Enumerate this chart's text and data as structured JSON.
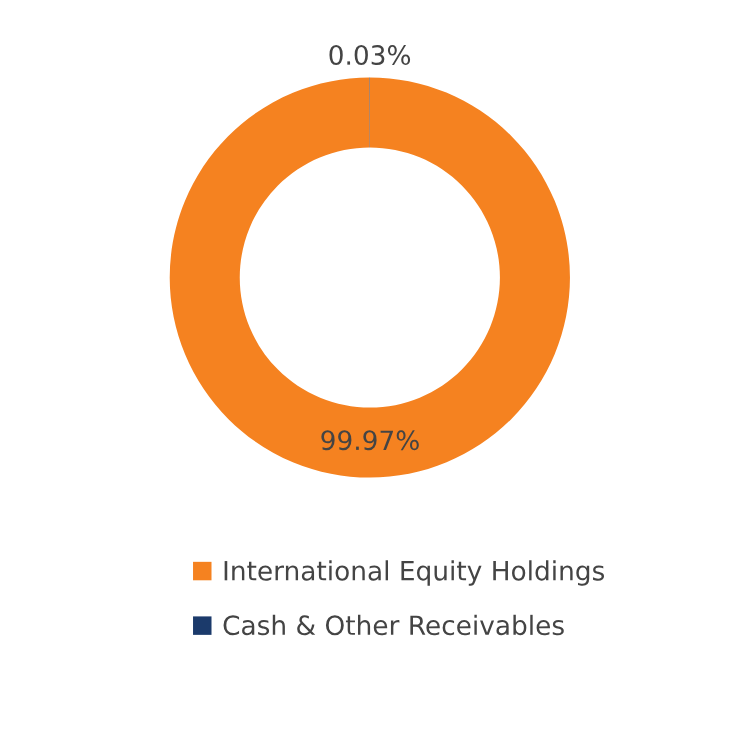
{
  "chart_data": {
    "type": "donut",
    "categories": [
      "International Equity Holdings",
      "Cash & Other Receivables"
    ],
    "values": [
      99.97,
      0.03
    ],
    "colors": [
      "#f58220",
      "#1b3a6b"
    ],
    "value_labels": [
      "99.97%",
      "0.03%"
    ],
    "legend": "bottom"
  }
}
